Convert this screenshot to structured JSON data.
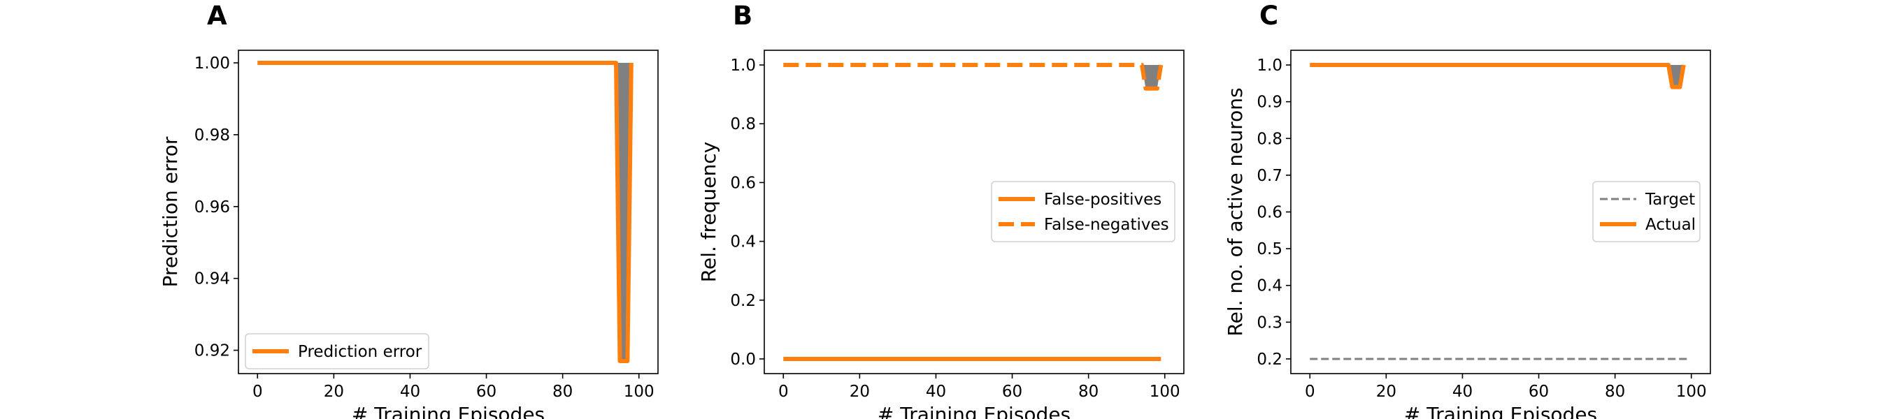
{
  "colors": {
    "orange": "#ff7f0e",
    "gray": "#808080",
    "target": "#808080"
  },
  "chart_data": [
    {
      "panel": "A",
      "type": "line",
      "xlabel": "# Training Episodes",
      "ylabel": "Prediction error",
      "xlim": [
        -5,
        105
      ],
      "ylim": [
        0.9135,
        1.0035
      ],
      "xticks": [
        0,
        20,
        40,
        60,
        80,
        100
      ],
      "yticks": [
        0.92,
        0.94,
        0.96,
        0.98,
        1.0
      ],
      "ytick_decimals": 2,
      "legend": "lower left",
      "series": [
        {
          "name": "Prediction error",
          "style": "solid",
          "in_legend": true,
          "x": [
            0,
            94,
            95,
            96,
            97,
            98
          ],
          "y": [
            1.0,
            1.0,
            0.917,
            0.917,
            0.917,
            1.0
          ]
        }
      ],
      "band": {
        "x": [
          94,
          95,
          96,
          97,
          98
        ],
        "y_low": [
          1.0,
          0.917,
          0.917,
          0.917,
          1.0
        ],
        "y_high": [
          1.0,
          1.0,
          1.0,
          1.0,
          1.0
        ]
      }
    },
    {
      "panel": "B",
      "type": "line",
      "xlabel": "# Training Episodes",
      "ylabel": "Rel. frequency",
      "xlim": [
        -5,
        105
      ],
      "ylim": [
        -0.05,
        1.05
      ],
      "xticks": [
        0,
        20,
        40,
        60,
        80,
        100
      ],
      "yticks": [
        0.0,
        0.2,
        0.4,
        0.6,
        0.8,
        1.0
      ],
      "ytick_decimals": 1,
      "legend": "center right",
      "series": [
        {
          "name": "False-positives",
          "style": "solid",
          "in_legend": true,
          "x": [
            0,
            99
          ],
          "y": [
            0.0,
            0.0
          ]
        },
        {
          "name": "False-negatives",
          "style": "dashed",
          "in_legend": true,
          "x": [
            0,
            94,
            95,
            96,
            97,
            98,
            99
          ],
          "y": [
            1.0,
            1.0,
            0.92,
            0.92,
            0.92,
            0.92,
            1.0
          ]
        }
      ],
      "band": {
        "x": [
          94,
          95,
          96,
          97,
          98,
          99
        ],
        "y_low": [
          1.0,
          0.92,
          0.92,
          0.92,
          0.92,
          1.0
        ],
        "y_high": [
          1.0,
          1.0,
          1.0,
          1.0,
          1.0,
          1.0
        ]
      }
    },
    {
      "panel": "C",
      "type": "line",
      "xlabel": "# Training Episodes",
      "ylabel": "Rel. no. of active neurons",
      "xlim": [
        -5,
        105
      ],
      "ylim": [
        0.16,
        1.04
      ],
      "xticks": [
        0,
        20,
        40,
        60,
        80,
        100
      ],
      "yticks": [
        0.2,
        0.3,
        0.4,
        0.5,
        0.6,
        0.7,
        0.8,
        0.9,
        1.0
      ],
      "ytick_decimals": 1,
      "legend": "center right",
      "series": [
        {
          "name": "Target",
          "style": "dashed-thin",
          "in_legend": true,
          "x": [
            0,
            99
          ],
          "y": [
            0.2,
            0.2
          ]
        },
        {
          "name": "Actual",
          "style": "solid",
          "in_legend": true,
          "x": [
            0,
            94,
            95,
            96,
            97,
            98
          ],
          "y": [
            1.0,
            1.0,
            0.94,
            0.94,
            0.94,
            1.0
          ]
        }
      ],
      "band": {
        "x": [
          94,
          95,
          96,
          97,
          98
        ],
        "y_low": [
          1.0,
          0.94,
          0.94,
          0.94,
          1.0
        ],
        "y_high": [
          1.0,
          1.0,
          1.0,
          1.0,
          1.0
        ]
      }
    }
  ]
}
